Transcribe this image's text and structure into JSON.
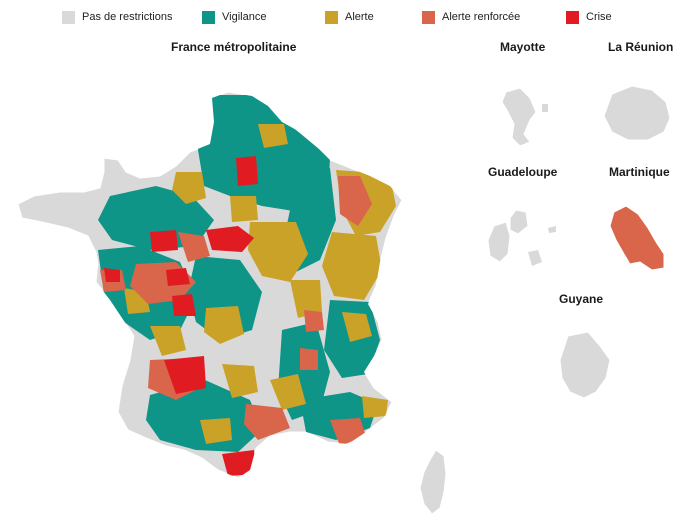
{
  "legend": {
    "items": [
      {
        "label": "Pas de restrictions",
        "color": "#d9d9d9"
      },
      {
        "label": "Vigilance",
        "color": "#0f9488"
      },
      {
        "label": "Alerte",
        "color": "#c9a227"
      },
      {
        "label": "Alerte renforcée",
        "color": "#d9654b"
      },
      {
        "label": "Crise",
        "color": "#e01b22"
      }
    ]
  },
  "maps": {
    "metro": {
      "title": "France métropolitaine"
    },
    "mayotte": {
      "title": "Mayotte",
      "status": "Pas de restrictions"
    },
    "reunion": {
      "title": "La Réunion",
      "status": "Pas de restrictions"
    },
    "guadeloupe": {
      "title": "Guadeloupe",
      "status": "Pas de restrictions"
    },
    "martinique": {
      "title": "Martinique",
      "status": "Alerte renforcée"
    },
    "guyane": {
      "title": "Guyane",
      "status": "Pas de restrictions"
    }
  }
}
